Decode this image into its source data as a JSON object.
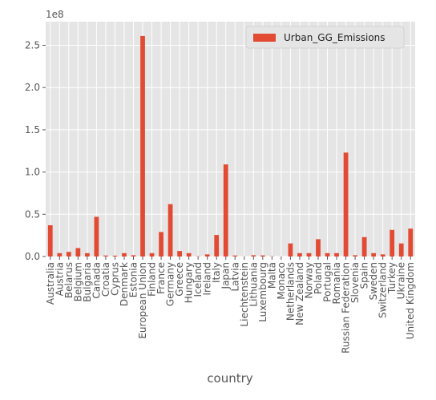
{
  "chart_data": {
    "type": "bar",
    "title": "",
    "xlabel": "country",
    "ylabel": "",
    "y_offset_label": "1e8",
    "y_scale": 100000000,
    "ylim": [
      0,
      278000000
    ],
    "yticks": [
      0,
      50000000,
      100000000,
      150000000,
      200000000,
      250000000
    ],
    "ytick_labels": [
      "0.0",
      "0.5",
      "1.0",
      "1.5",
      "2.0",
      "2.5"
    ],
    "grid": true,
    "legend_position": "top-right",
    "categories": [
      "Australia",
      "Austria",
      "Belarus",
      "Belgium",
      "Bulgaria",
      "Canada",
      "Croatia",
      "Cyprus",
      "Denmark",
      "Estonia",
      "European Union",
      "Finland",
      "France",
      "Germany",
      "Greece",
      "Hungary",
      "Iceland",
      "Ireland",
      "Italy",
      "Japan",
      "Latvia",
      "Liechtenstein",
      "Lithuania",
      "Luxembourg",
      "Malta",
      "Monaco",
      "Netherlands",
      "New Zealand",
      "Norway",
      "Poland",
      "Portugal",
      "Romania",
      "Russian Federation",
      "Slovenia",
      "Spain",
      "Sweden",
      "Switzerland",
      "Turkey",
      "Ukraine",
      "United Kingdom"
    ],
    "series": [
      {
        "name": "Urban_GG_Emissions",
        "color": "#e24a33",
        "values": [
          37000000,
          4000000,
          5500000,
          10000000,
          4000000,
          47000000,
          1200000,
          1000000,
          4000000,
          1500000,
          261000000,
          4000000,
          29000000,
          62000000,
          6500000,
          4000000,
          300000,
          2500000,
          25500000,
          109000000,
          1200000,
          100000,
          1500000,
          1300000,
          300000,
          50000,
          15500000,
          4000000,
          4000000,
          20500000,
          4000000,
          4000000,
          123000000,
          1500000,
          23000000,
          4000000,
          2500000,
          31500000,
          15500000,
          33000000
        ]
      }
    ]
  }
}
